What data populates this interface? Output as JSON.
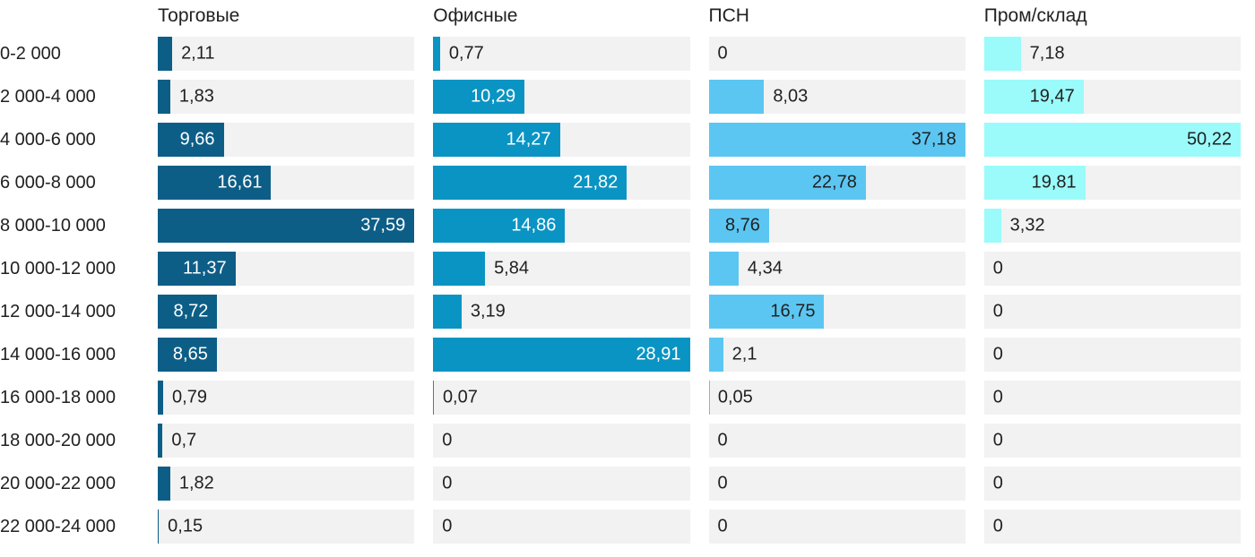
{
  "chart_data": {
    "type": "bar",
    "orientation": "horizontal",
    "grid": false,
    "legend": "none",
    "title": "",
    "xlabel": "",
    "ylabel": "",
    "track_color": "#f2f2f2",
    "text_color": "#212121",
    "background_color": "#ffffff",
    "decimal_separator": ",",
    "categories": [
      "0-2 000",
      "2 000-4 000",
      "4 000-6 000",
      "6 000-8 000",
      "8 000-10 000",
      "10 000-12 000",
      "12 000-14 000",
      "14 000-16 000",
      "16 000-18 000",
      "18 000-20 000",
      "20 000-22 000",
      "22 000-24 000"
    ],
    "series": [
      {
        "name": "Торговые",
        "color": "#0d5e87",
        "label_color_inside": "#ffffff",
        "xmax": 37.59,
        "values": [
          2.11,
          1.83,
          9.66,
          16.61,
          37.59,
          11.37,
          8.72,
          8.65,
          0.79,
          0.7,
          1.82,
          0.15
        ],
        "labels": [
          "2,11",
          "1,83",
          "9,66",
          "16,61",
          "37,59",
          "11,37",
          "8,72",
          "8,65",
          "0,79",
          "0,7",
          "1,82",
          "0,15"
        ]
      },
      {
        "name": "Офисные",
        "color": "#0a94c3",
        "label_color_inside": "#ffffff",
        "xmax": 28.91,
        "values": [
          0.77,
          10.29,
          14.27,
          21.82,
          14.86,
          5.84,
          3.19,
          28.91,
          0.07,
          0,
          0,
          0
        ],
        "labels": [
          "0,77",
          "10,29",
          "14,27",
          "21,82",
          "14,86",
          "5,84",
          "3,19",
          "28,91",
          "0,07",
          "0",
          "0",
          "0"
        ]
      },
      {
        "name": "ПСН",
        "color": "#5cc6f2",
        "label_color_inside": "#212121",
        "xmax": 37.18,
        "values": [
          0,
          8.03,
          37.18,
          22.78,
          8.76,
          4.34,
          16.75,
          2.1,
          0.05,
          0,
          0,
          0
        ],
        "labels": [
          "0",
          "8,03",
          "37,18",
          "22,78",
          "8,76",
          "4,34",
          "16,75",
          "2,1",
          "0,05",
          "0",
          "0",
          "0"
        ]
      },
      {
        "name": "Пром/склад",
        "color": "#9afbfa",
        "label_color_inside": "#212121",
        "xmax": 50.22,
        "values": [
          7.18,
          19.47,
          50.22,
          19.81,
          3.32,
          0,
          0,
          0,
          0,
          0,
          0,
          0
        ],
        "labels": [
          "7,18",
          "19,47",
          "50,22",
          "19,81",
          "3,32",
          "0",
          "0",
          "0",
          "0",
          "0",
          "0",
          "0"
        ]
      }
    ]
  }
}
